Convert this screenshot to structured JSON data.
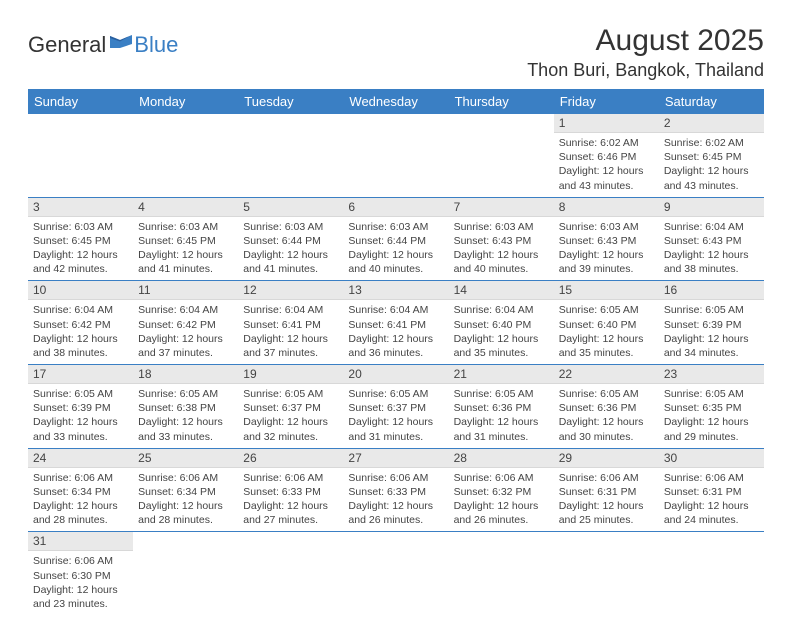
{
  "logo": {
    "general": "General",
    "blue": "Blue"
  },
  "title": "August 2025",
  "location": "Thon Buri, Bangkok, Thailand",
  "colors": {
    "header_bg": "#3a7fc4",
    "header_fg": "#ffffff",
    "daynum_bg": "#e9e9e9",
    "row_divider": "#3a7fc4",
    "text": "#333333"
  },
  "weekdays": [
    "Sunday",
    "Monday",
    "Tuesday",
    "Wednesday",
    "Thursday",
    "Friday",
    "Saturday"
  ],
  "weeks": [
    [
      null,
      null,
      null,
      null,
      null,
      {
        "n": "1",
        "sr": "6:02 AM",
        "ss": "6:46 PM",
        "dl": "12 hours and 43 minutes."
      },
      {
        "n": "2",
        "sr": "6:02 AM",
        "ss": "6:45 PM",
        "dl": "12 hours and 43 minutes."
      }
    ],
    [
      {
        "n": "3",
        "sr": "6:03 AM",
        "ss": "6:45 PM",
        "dl": "12 hours and 42 minutes."
      },
      {
        "n": "4",
        "sr": "6:03 AM",
        "ss": "6:45 PM",
        "dl": "12 hours and 41 minutes."
      },
      {
        "n": "5",
        "sr": "6:03 AM",
        "ss": "6:44 PM",
        "dl": "12 hours and 41 minutes."
      },
      {
        "n": "6",
        "sr": "6:03 AM",
        "ss": "6:44 PM",
        "dl": "12 hours and 40 minutes."
      },
      {
        "n": "7",
        "sr": "6:03 AM",
        "ss": "6:43 PM",
        "dl": "12 hours and 40 minutes."
      },
      {
        "n": "8",
        "sr": "6:03 AM",
        "ss": "6:43 PM",
        "dl": "12 hours and 39 minutes."
      },
      {
        "n": "9",
        "sr": "6:04 AM",
        "ss": "6:43 PM",
        "dl": "12 hours and 38 minutes."
      }
    ],
    [
      {
        "n": "10",
        "sr": "6:04 AM",
        "ss": "6:42 PM",
        "dl": "12 hours and 38 minutes."
      },
      {
        "n": "11",
        "sr": "6:04 AM",
        "ss": "6:42 PM",
        "dl": "12 hours and 37 minutes."
      },
      {
        "n": "12",
        "sr": "6:04 AM",
        "ss": "6:41 PM",
        "dl": "12 hours and 37 minutes."
      },
      {
        "n": "13",
        "sr": "6:04 AM",
        "ss": "6:41 PM",
        "dl": "12 hours and 36 minutes."
      },
      {
        "n": "14",
        "sr": "6:04 AM",
        "ss": "6:40 PM",
        "dl": "12 hours and 35 minutes."
      },
      {
        "n": "15",
        "sr": "6:05 AM",
        "ss": "6:40 PM",
        "dl": "12 hours and 35 minutes."
      },
      {
        "n": "16",
        "sr": "6:05 AM",
        "ss": "6:39 PM",
        "dl": "12 hours and 34 minutes."
      }
    ],
    [
      {
        "n": "17",
        "sr": "6:05 AM",
        "ss": "6:39 PM",
        "dl": "12 hours and 33 minutes."
      },
      {
        "n": "18",
        "sr": "6:05 AM",
        "ss": "6:38 PM",
        "dl": "12 hours and 33 minutes."
      },
      {
        "n": "19",
        "sr": "6:05 AM",
        "ss": "6:37 PM",
        "dl": "12 hours and 32 minutes."
      },
      {
        "n": "20",
        "sr": "6:05 AM",
        "ss": "6:37 PM",
        "dl": "12 hours and 31 minutes."
      },
      {
        "n": "21",
        "sr": "6:05 AM",
        "ss": "6:36 PM",
        "dl": "12 hours and 31 minutes."
      },
      {
        "n": "22",
        "sr": "6:05 AM",
        "ss": "6:36 PM",
        "dl": "12 hours and 30 minutes."
      },
      {
        "n": "23",
        "sr": "6:05 AM",
        "ss": "6:35 PM",
        "dl": "12 hours and 29 minutes."
      }
    ],
    [
      {
        "n": "24",
        "sr": "6:06 AM",
        "ss": "6:34 PM",
        "dl": "12 hours and 28 minutes."
      },
      {
        "n": "25",
        "sr": "6:06 AM",
        "ss": "6:34 PM",
        "dl": "12 hours and 28 minutes."
      },
      {
        "n": "26",
        "sr": "6:06 AM",
        "ss": "6:33 PM",
        "dl": "12 hours and 27 minutes."
      },
      {
        "n": "27",
        "sr": "6:06 AM",
        "ss": "6:33 PM",
        "dl": "12 hours and 26 minutes."
      },
      {
        "n": "28",
        "sr": "6:06 AM",
        "ss": "6:32 PM",
        "dl": "12 hours and 26 minutes."
      },
      {
        "n": "29",
        "sr": "6:06 AM",
        "ss": "6:31 PM",
        "dl": "12 hours and 25 minutes."
      },
      {
        "n": "30",
        "sr": "6:06 AM",
        "ss": "6:31 PM",
        "dl": "12 hours and 24 minutes."
      }
    ],
    [
      {
        "n": "31",
        "sr": "6:06 AM",
        "ss": "6:30 PM",
        "dl": "12 hours and 23 minutes."
      },
      null,
      null,
      null,
      null,
      null,
      null
    ]
  ],
  "labels": {
    "sunrise": "Sunrise:",
    "sunset": "Sunset:",
    "daylight": "Daylight:"
  }
}
